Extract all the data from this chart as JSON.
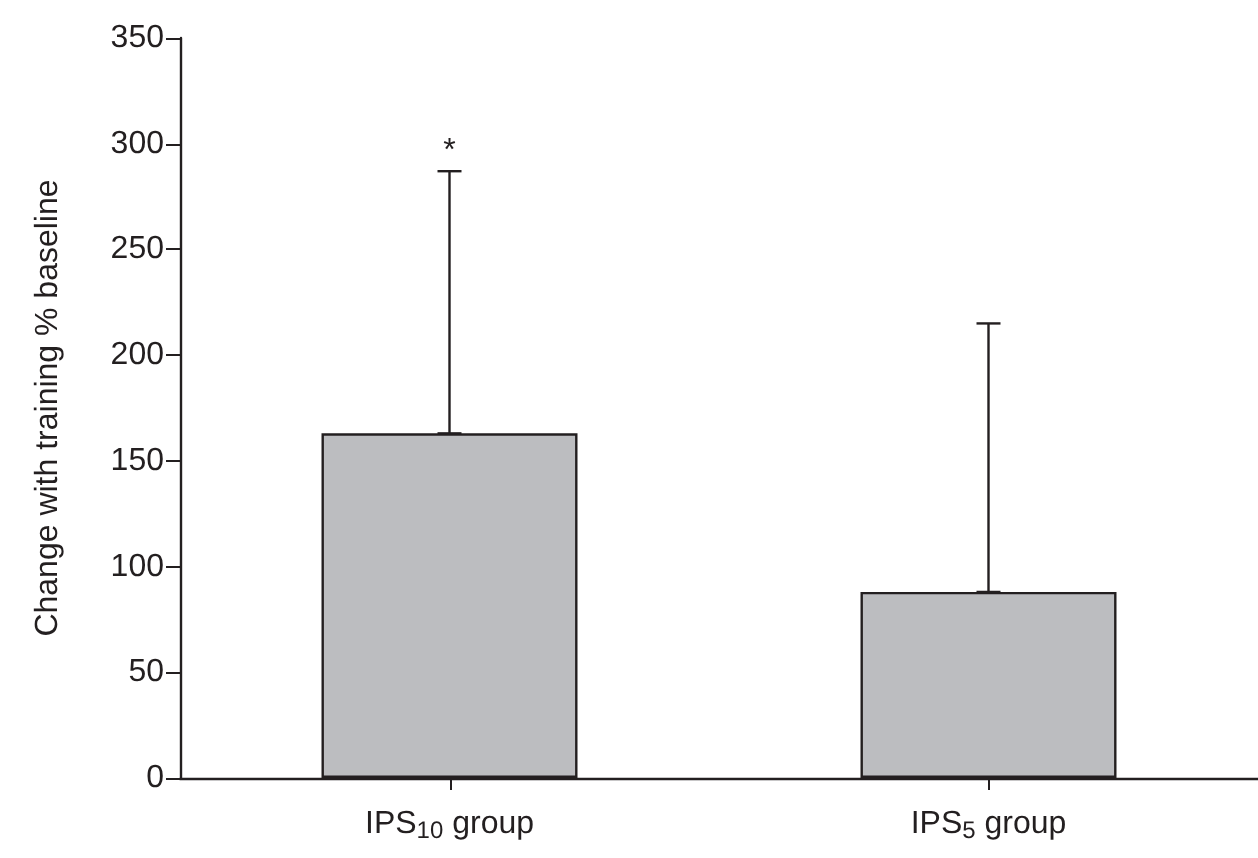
{
  "chart_data": {
    "type": "bar",
    "ylabel": "Change with training % baseline",
    "categories": [
      "IPS$_{10}$ group",
      "IPS$_{5}$ group"
    ],
    "values": [
      163,
      88
    ],
    "errors": [
      [
        163,
        287
      ],
      [
        88,
        215
      ]
    ],
    "color": "#bcbdc0",
    "ylim": [
      0,
      350
    ],
    "yticks": [
      0,
      50,
      100,
      150,
      200,
      250,
      300,
      350
    ],
    "annotations": [
      {
        "text": "*",
        "x": "IPS$_{10}$ group",
        "y": 287
      }
    ],
    "grid": false
  }
}
